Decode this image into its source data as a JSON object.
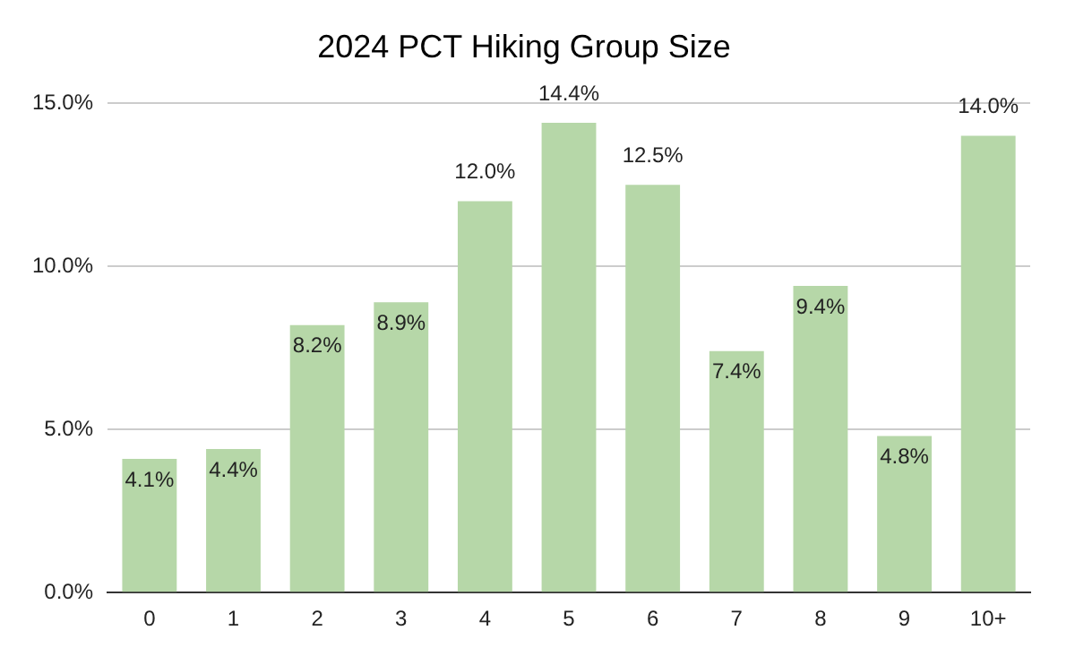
{
  "chart_data": {
    "type": "bar",
    "title": "2024 PCT Hiking Group Size",
    "categories": [
      "0",
      "1",
      "2",
      "3",
      "4",
      "5",
      "6",
      "7",
      "8",
      "9",
      "10+"
    ],
    "values": [
      4.1,
      4.4,
      8.2,
      8.9,
      12.0,
      14.4,
      12.5,
      7.4,
      9.4,
      4.8,
      14.0
    ],
    "value_labels": [
      "4.1%",
      "4.4%",
      "8.2%",
      "8.9%",
      "12.0%",
      "14.4%",
      "12.5%",
      "7.4%",
      "9.4%",
      "4.8%",
      "14.0%"
    ],
    "color": "#b6d7a8",
    "ylim": [
      0,
      15
    ],
    "yticks": [
      {
        "value": 0,
        "label": "0.0%"
      },
      {
        "value": 5,
        "label": "5.0%"
      },
      {
        "value": 10,
        "label": "10.0%"
      },
      {
        "value": 15,
        "label": "15.0%"
      }
    ],
    "grid": "y",
    "legend": false
  }
}
